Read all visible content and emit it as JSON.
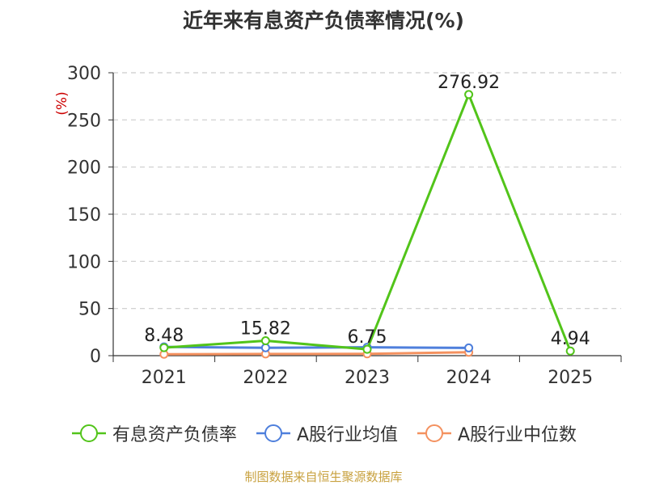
{
  "chart_data": {
    "type": "line",
    "title": "近年来有息资产负债率情况(%)",
    "ylabel": "(%)",
    "xlabel": "",
    "categories": [
      "2021",
      "2022",
      "2023",
      "2024",
      "2025"
    ],
    "ylim": [
      0,
      300
    ],
    "yticks": [
      0,
      50,
      100,
      150,
      200,
      250,
      300
    ],
    "grid": true,
    "legend_position": "bottom",
    "series": [
      {
        "name": "有息资产负债率",
        "color": "#52c41a",
        "values": [
          8.48,
          15.82,
          6.75,
          276.92,
          4.94
        ],
        "labels": [
          "8.48",
          "15.82",
          "6.75",
          "276.92",
          "4.94"
        ]
      },
      {
        "name": "A股行业均值",
        "color": "#4e7fdc",
        "values": [
          9.3,
          8.4,
          8.9,
          8.2,
          null
        ]
      },
      {
        "name": "A股行业中位数",
        "color": "#f4915f",
        "values": [
          1.5,
          1.8,
          1.9,
          3.6,
          null
        ]
      }
    ]
  },
  "source_note": "制图数据来自恒生聚源数据库",
  "colors": {
    "axis": "#333333",
    "grid": "#cccccc",
    "ylabel": "#cc0000",
    "source": "#c8a13f"
  }
}
